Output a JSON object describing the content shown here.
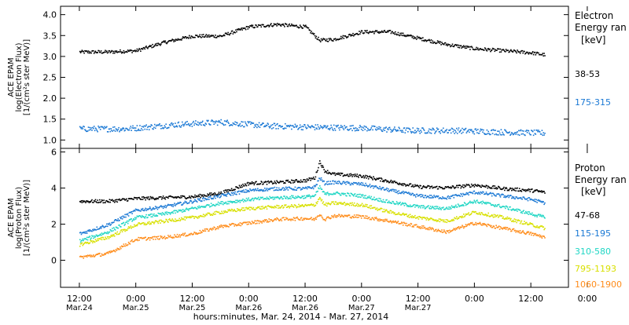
{
  "chart_data": [
    {
      "type": "scatter",
      "panel": "electron",
      "ylabel_lines": [
        "ACE EPAM",
        "log(Electron Flux)",
        "[1/(cm²s ster MeV)]"
      ],
      "ylim": [
        0.8,
        4.2
      ],
      "yticks": [
        1.0,
        1.5,
        2.0,
        2.5,
        3.0,
        3.5,
        4.0
      ],
      "ytick_labels": [
        "1.0",
        "1.5",
        "2.0",
        "2.5",
        "3.0",
        "3.5",
        "4.0"
      ],
      "legend_title_lines": [
        "Electron",
        "Energy ran"
      ],
      "legend_unit": "[keV]",
      "series": [
        {
          "name": "38-53",
          "color": "#000000",
          "x_hours": [
            0,
            6,
            12,
            18,
            24,
            30,
            36,
            42,
            48,
            51,
            54,
            60,
            66,
            72,
            78,
            84,
            90,
            96,
            99
          ],
          "values": [
            3.12,
            3.12,
            3.15,
            3.35,
            3.5,
            3.5,
            3.72,
            3.78,
            3.72,
            3.4,
            3.42,
            3.6,
            3.6,
            3.45,
            3.3,
            3.2,
            3.15,
            3.1,
            3.05
          ]
        },
        {
          "name": "175-315",
          "color": "#1a78d4",
          "x_hours": [
            0,
            10,
            20,
            30,
            40,
            50,
            60,
            70,
            80,
            90,
            99
          ],
          "values": [
            1.28,
            1.28,
            1.38,
            1.44,
            1.35,
            1.32,
            1.3,
            1.24,
            1.24,
            1.2,
            1.18
          ]
        }
      ]
    },
    {
      "type": "scatter",
      "panel": "proton",
      "ylabel_lines": [
        "ACE EPAM",
        "log(Proton Flux)",
        "[1/(cm²s ster MeV)]"
      ],
      "ylim": [
        -1.5,
        6.2
      ],
      "yticks": [
        0,
        2,
        4,
        6
      ],
      "ytick_labels": [
        "0",
        "2",
        "4",
        "6"
      ],
      "legend_title_lines": [
        "Proton",
        "Energy ran"
      ],
      "legend_unit": "[keV]",
      "series": [
        {
          "name": "47-68",
          "color": "#000000",
          "x_hours": [
            0,
            6,
            12,
            18,
            24,
            30,
            36,
            42,
            48,
            50,
            51,
            52,
            54,
            60,
            66,
            72,
            78,
            84,
            90,
            96,
            99
          ],
          "values": [
            3.3,
            3.3,
            3.45,
            3.5,
            3.55,
            3.75,
            4.3,
            4.35,
            4.45,
            4.6,
            5.5,
            5.0,
            4.8,
            4.7,
            4.4,
            4.1,
            4.05,
            4.2,
            4.0,
            3.9,
            3.8
          ]
        },
        {
          "name": "115-195",
          "color": "#1a78d4",
          "x_hours": [
            0,
            6,
            12,
            18,
            24,
            30,
            36,
            42,
            48,
            50,
            51,
            52,
            54,
            60,
            66,
            72,
            78,
            84,
            90,
            96,
            99
          ],
          "values": [
            1.5,
            2.0,
            2.8,
            3.0,
            3.3,
            3.6,
            3.9,
            4.0,
            4.0,
            4.1,
            4.6,
            4.3,
            4.35,
            4.25,
            3.9,
            3.6,
            3.5,
            3.8,
            3.6,
            3.4,
            3.2
          ]
        },
        {
          "name": "310-580",
          "color": "#1fd6c4",
          "x_hours": [
            0,
            6,
            12,
            18,
            24,
            30,
            36,
            42,
            48,
            50,
            51,
            52,
            54,
            60,
            66,
            72,
            78,
            84,
            90,
            96,
            99
          ],
          "values": [
            1.1,
            1.6,
            2.4,
            2.6,
            2.9,
            3.2,
            3.4,
            3.5,
            3.55,
            3.6,
            4.1,
            3.7,
            3.75,
            3.6,
            3.25,
            3.0,
            2.9,
            3.3,
            3.0,
            2.6,
            2.4
          ]
        },
        {
          "name": "795-1193",
          "color": "#d8e000",
          "x_hours": [
            0,
            6,
            12,
            18,
            24,
            30,
            36,
            42,
            48,
            50,
            51,
            52,
            54,
            60,
            66,
            72,
            78,
            84,
            90,
            96,
            99
          ],
          "values": [
            0.9,
            1.3,
            2.0,
            2.2,
            2.4,
            2.7,
            2.9,
            3.0,
            3.05,
            3.1,
            3.5,
            3.1,
            3.2,
            3.1,
            2.7,
            2.4,
            2.2,
            2.7,
            2.4,
            2.0,
            1.8
          ]
        },
        {
          "name": "1060-1900",
          "color": "#ff8c1a",
          "x_hours": [
            0,
            6,
            12,
            18,
            24,
            30,
            36,
            42,
            48,
            50,
            51,
            52,
            54,
            60,
            66,
            72,
            78,
            84,
            90,
            96,
            99
          ],
          "values": [
            0.2,
            0.4,
            1.2,
            1.3,
            1.5,
            1.9,
            2.1,
            2.3,
            2.35,
            2.3,
            2.6,
            2.3,
            2.5,
            2.45,
            2.2,
            1.9,
            1.6,
            2.1,
            1.8,
            1.5,
            1.3
          ]
        }
      ]
    }
  ],
  "x_axis": {
    "xlim": [
      -4,
      104
    ],
    "ticks_hours": [
      0,
      12,
      24,
      36,
      48,
      60,
      72,
      84,
      96,
      108
    ],
    "tick_times": [
      "12:00",
      "0:00",
      "12:00",
      "0:00",
      "12:00",
      "0:00",
      "12:00",
      "0:00",
      "12:00",
      "0:00"
    ],
    "tick_dates": [
      "Mar.24",
      "Mar.25",
      "Mar.25",
      "Mar.26",
      "Mar.26",
      "Mar.27",
      "Mar.27",
      "",
      "",
      ""
    ],
    "title": "hours:minutes, Mar. 24, 2014 - Mar. 27, 2014"
  }
}
